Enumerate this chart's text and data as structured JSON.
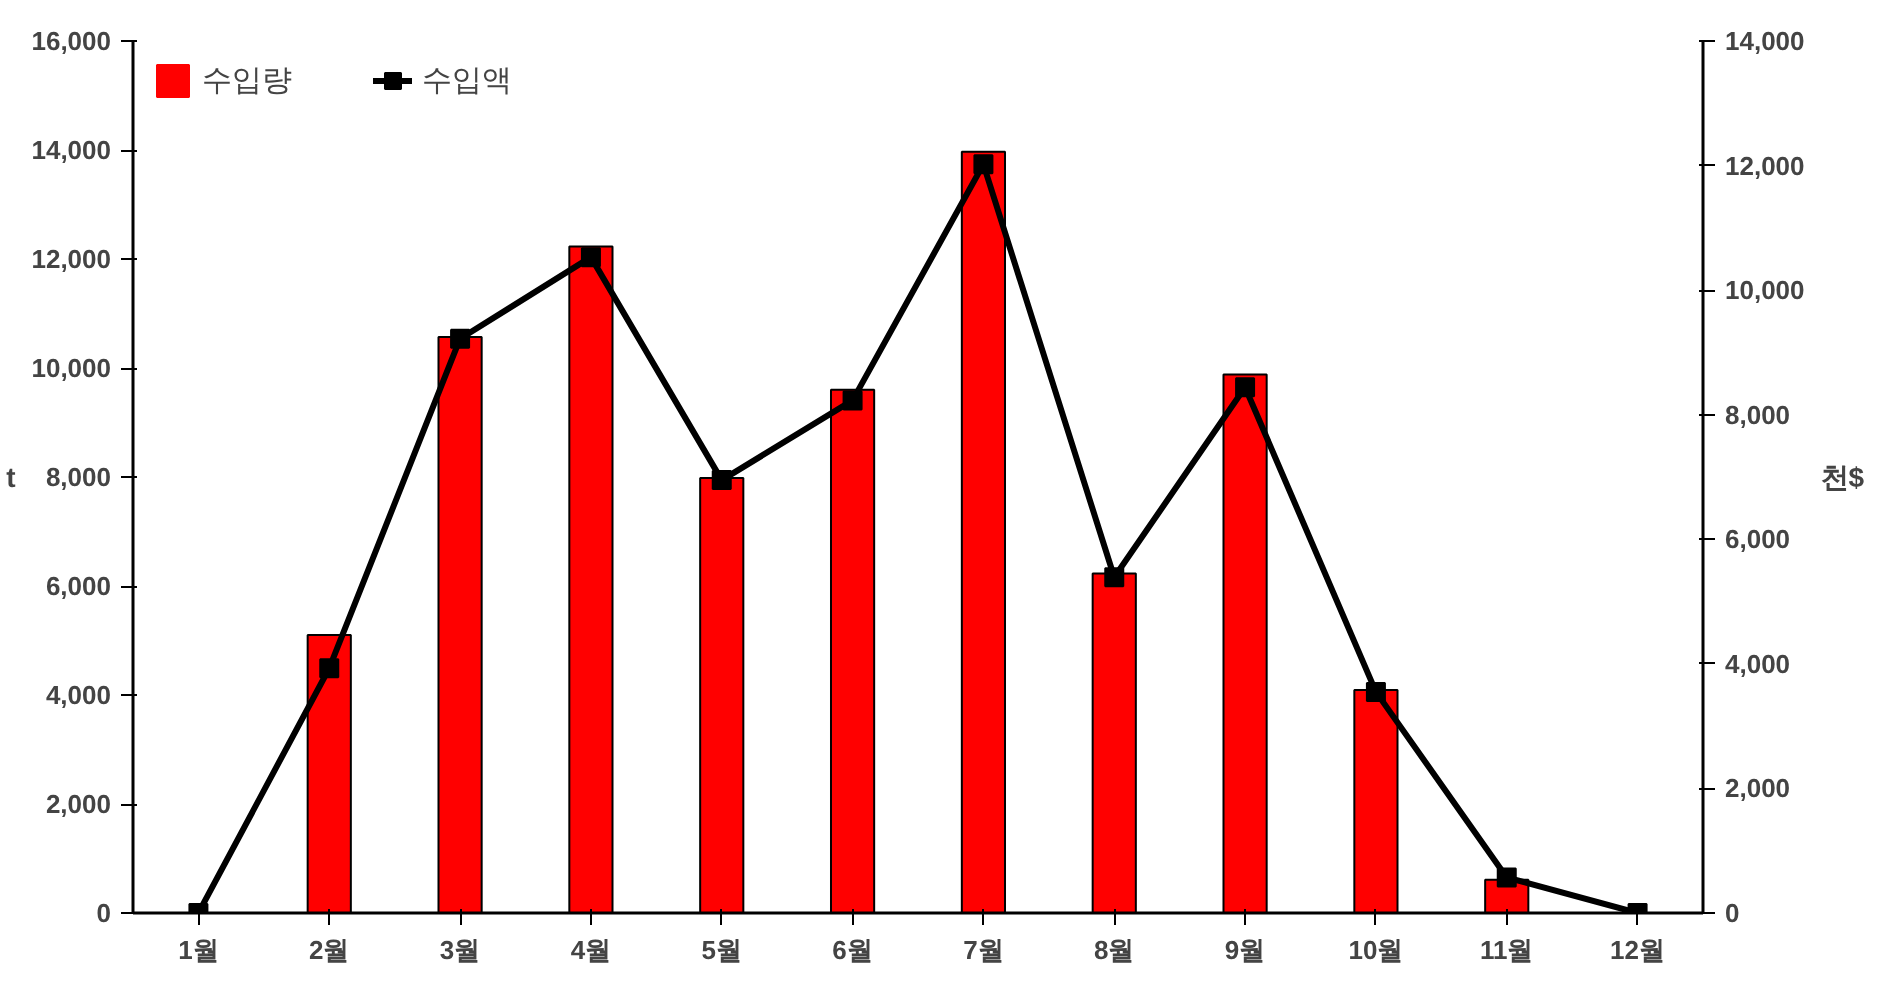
{
  "chart_data": {
    "type": "bar",
    "categories": [
      "1월",
      "2월",
      "3월",
      "4월",
      "5월",
      "6월",
      "7월",
      "8월",
      "9월",
      "10월",
      "11월",
      "12월"
    ],
    "ylabel": "t",
    "y2label": "천$",
    "series": [
      {
        "name": "수입량",
        "color": "#ff0000",
        "values": [
          0,
          5100,
          10570,
          12230,
          7980,
          9600,
          13970,
          6230,
          9880,
          4090,
          610,
          0
        ]
      },
      {
        "name": "수입액",
        "type": "line",
        "axis": "y2",
        "color": "#000000",
        "marker": "square",
        "values": [
          0,
          3930,
          9220,
          10530,
          6950,
          8230,
          12020,
          5390,
          8440,
          3550,
          570,
          0
        ]
      }
    ],
    "ylim": [
      0,
      16000
    ],
    "yticks": [
      {
        "value": 0,
        "label": "0"
      },
      {
        "value": 2000,
        "label": "2,000"
      },
      {
        "value": 4000,
        "label": "4,000"
      },
      {
        "value": 6000,
        "label": "6,000"
      },
      {
        "value": 8000,
        "label": "8,000"
      },
      {
        "value": 10000,
        "label": "10,000"
      },
      {
        "value": 12000,
        "label": "12,000"
      },
      {
        "value": 14000,
        "label": "14,000"
      },
      {
        "value": 16000,
        "label": "16,000"
      }
    ],
    "y2lim": [
      0,
      14000
    ],
    "y2ticks": [
      {
        "value": 0,
        "label": "0"
      },
      {
        "value": 2000,
        "label": "2,000"
      },
      {
        "value": 4000,
        "label": "4,000"
      },
      {
        "value": 6000,
        "label": "6,000"
      },
      {
        "value": 8000,
        "label": "8,000"
      },
      {
        "value": 10000,
        "label": "10,000"
      },
      {
        "value": 12000,
        "label": "12,000"
      },
      {
        "value": 14000,
        "label": "14,000"
      }
    ],
    "grid": false,
    "legend": "top left"
  }
}
